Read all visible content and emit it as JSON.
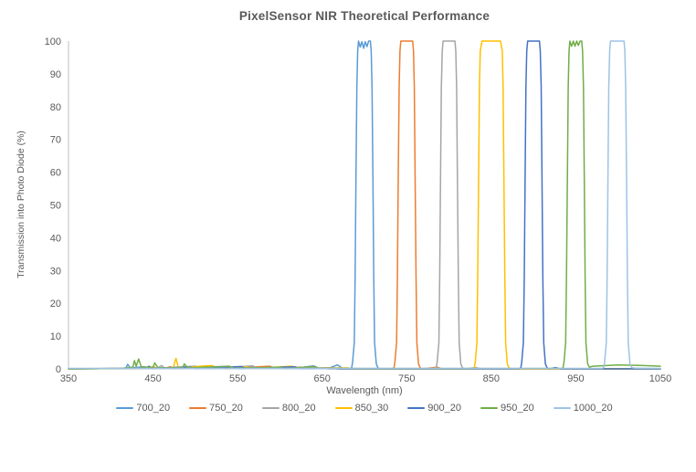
{
  "chart_data": {
    "type": "line",
    "title": "PixelSensor NIR Theoretical Performance",
    "xlabel": "Wavelength (nm)",
    "ylabel": "Transmission into Photo Diode (%)",
    "xlim": [
      350,
      1050
    ],
    "ylim": [
      0,
      100
    ],
    "x_ticks": [
      350,
      450,
      550,
      650,
      750,
      850,
      950,
      1050
    ],
    "y_ticks": [
      0,
      10,
      20,
      30,
      40,
      50,
      60,
      70,
      80,
      90,
      100
    ],
    "grid": false,
    "legend_position": "bottom",
    "axis_color": "#bfbfbf",
    "text_color": "#595959",
    "series": [
      {
        "name": "700_20",
        "color": "#5B9BD5",
        "center_nm": 700,
        "fwhm_nm": 20,
        "peak_pct": 100,
        "points": [
          [
            350,
            0
          ],
          [
            412,
            0.1
          ],
          [
            418,
            0.3
          ],
          [
            420,
            1.4
          ],
          [
            423,
            0.3
          ],
          [
            440,
            0.6
          ],
          [
            448,
            0.1
          ],
          [
            500,
            0.8
          ],
          [
            506,
            0.2
          ],
          [
            548,
            0.4
          ],
          [
            552,
            0.1
          ],
          [
            585,
            0.5
          ],
          [
            600,
            0.2
          ],
          [
            622,
            0.3
          ],
          [
            640,
            0.9
          ],
          [
            646,
            0.2
          ],
          [
            660,
            0.4
          ],
          [
            668,
            1.2
          ],
          [
            674,
            0.2
          ],
          [
            683,
            0
          ],
          [
            685,
            0.4
          ],
          [
            686,
            2
          ],
          [
            688,
            8
          ],
          [
            689,
            28
          ],
          [
            690,
            58
          ],
          [
            691,
            86
          ],
          [
            692,
            97
          ],
          [
            693,
            100
          ],
          [
            695,
            98.2
          ],
          [
            697,
            99.8
          ],
          [
            699,
            97.8
          ],
          [
            701,
            99.8
          ],
          [
            703,
            98.3
          ],
          [
            705,
            100
          ],
          [
            707,
            100
          ],
          [
            708,
            97
          ],
          [
            709,
            86
          ],
          [
            710,
            58
          ],
          [
            711,
            28
          ],
          [
            712,
            8
          ],
          [
            714,
            1.5
          ],
          [
            716,
            0.3
          ],
          [
            718,
            0
          ],
          [
            1050,
            0
          ]
        ]
      },
      {
        "name": "750_20",
        "color": "#ED7D31",
        "center_nm": 750,
        "fwhm_nm": 20,
        "peak_pct": 100,
        "points": [
          [
            350,
            0
          ],
          [
            466,
            0.2
          ],
          [
            470,
            0.7
          ],
          [
            474,
            0.1
          ],
          [
            530,
            0.5
          ],
          [
            536,
            0.1
          ],
          [
            588,
            0.8
          ],
          [
            594,
            0.2
          ],
          [
            625,
            0.5
          ],
          [
            632,
            0.1
          ],
          [
            662,
            0.3
          ],
          [
            668,
            0
          ],
          [
            733,
            0
          ],
          [
            735,
            0.4
          ],
          [
            736,
            2
          ],
          [
            738,
            8
          ],
          [
            739,
            28
          ],
          [
            740,
            58
          ],
          [
            741,
            86
          ],
          [
            742,
            97
          ],
          [
            743,
            100
          ],
          [
            757,
            100
          ],
          [
            758,
            97
          ],
          [
            759,
            86
          ],
          [
            760,
            58
          ],
          [
            761,
            28
          ],
          [
            762,
            8
          ],
          [
            764,
            1.5
          ],
          [
            766,
            0.3
          ],
          [
            768,
            0
          ],
          [
            786,
            0.5
          ],
          [
            792,
            0
          ],
          [
            1050,
            0
          ]
        ]
      },
      {
        "name": "800_20",
        "color": "#A5A5A5",
        "center_nm": 800,
        "fwhm_nm": 20,
        "peak_pct": 100,
        "points": [
          [
            350,
            0
          ],
          [
            456,
            0.3
          ],
          [
            460,
            1
          ],
          [
            464,
            0.2
          ],
          [
            510,
            0.6
          ],
          [
            516,
            0.1
          ],
          [
            568,
            0.9
          ],
          [
            574,
            0.2
          ],
          [
            610,
            0.4
          ],
          [
            616,
            0.1
          ],
          [
            652,
            0.3
          ],
          [
            658,
            0
          ],
          [
            783,
            0
          ],
          [
            785,
            0.4
          ],
          [
            786,
            2
          ],
          [
            788,
            8
          ],
          [
            789,
            28
          ],
          [
            790,
            58
          ],
          [
            791,
            86
          ],
          [
            792,
            97
          ],
          [
            793,
            100
          ],
          [
            807,
            100
          ],
          [
            808,
            97
          ],
          [
            809,
            86
          ],
          [
            810,
            58
          ],
          [
            811,
            28
          ],
          [
            812,
            8
          ],
          [
            814,
            1.5
          ],
          [
            816,
            0.3
          ],
          [
            818,
            0
          ],
          [
            832,
            0.4
          ],
          [
            838,
            0
          ],
          [
            1050,
            0
          ]
        ]
      },
      {
        "name": "850_30",
        "color": "#FFC000",
        "center_nm": 850,
        "fwhm_nm": 30,
        "peak_pct": 100,
        "points": [
          [
            350,
            0
          ],
          [
            446,
            0.2
          ],
          [
            450,
            0.8
          ],
          [
            454,
            0.2
          ],
          [
            474,
            0.4
          ],
          [
            477,
            3.2
          ],
          [
            480,
            0.4
          ],
          [
            520,
            1
          ],
          [
            526,
            0.2
          ],
          [
            560,
            0.6
          ],
          [
            566,
            0.1
          ],
          [
            614,
            0.8
          ],
          [
            620,
            0.2
          ],
          [
            680,
            0.3
          ],
          [
            686,
            0
          ],
          [
            827,
            0
          ],
          [
            830,
            0.4
          ],
          [
            831,
            2
          ],
          [
            833,
            8
          ],
          [
            834,
            28
          ],
          [
            835,
            58
          ],
          [
            836,
            86
          ],
          [
            837,
            97
          ],
          [
            839,
            100
          ],
          [
            861,
            100
          ],
          [
            863,
            97
          ],
          [
            864,
            86
          ],
          [
            865,
            58
          ],
          [
            866,
            28
          ],
          [
            867,
            8
          ],
          [
            869,
            1.5
          ],
          [
            871,
            0.3
          ],
          [
            874,
            0
          ],
          [
            1050,
            0
          ]
        ]
      },
      {
        "name": "900_20",
        "color": "#4472C4",
        "center_nm": 900,
        "fwhm_nm": 20,
        "peak_pct": 100,
        "points": [
          [
            350,
            0
          ],
          [
            442,
            0.2
          ],
          [
            445,
            0.8
          ],
          [
            449,
            0.2
          ],
          [
            495,
            0.5
          ],
          [
            501,
            0.1
          ],
          [
            554,
            0.7
          ],
          [
            560,
            0.2
          ],
          [
            618,
            0.6
          ],
          [
            624,
            0.1
          ],
          [
            664,
            0.2
          ],
          [
            670,
            0
          ],
          [
            883,
            0
          ],
          [
            885,
            0.4
          ],
          [
            886,
            2
          ],
          [
            888,
            8
          ],
          [
            889,
            28
          ],
          [
            890,
            58
          ],
          [
            891,
            86
          ],
          [
            892,
            97
          ],
          [
            893,
            100
          ],
          [
            907,
            100
          ],
          [
            908,
            97
          ],
          [
            909,
            86
          ],
          [
            910,
            58
          ],
          [
            911,
            28
          ],
          [
            912,
            8
          ],
          [
            914,
            1.5
          ],
          [
            916,
            0.3
          ],
          [
            918,
            0
          ],
          [
            926,
            0.4
          ],
          [
            932,
            0
          ],
          [
            1050,
            0
          ]
        ]
      },
      {
        "name": "950_20",
        "color": "#70AD47",
        "center_nm": 950,
        "fwhm_nm": 20,
        "peak_pct": 100,
        "points": [
          [
            350,
            0
          ],
          [
            414,
            0.1
          ],
          [
            418,
            0.3
          ],
          [
            426,
            0.5
          ],
          [
            428,
            2.5
          ],
          [
            430,
            0.8
          ],
          [
            433,
            3
          ],
          [
            436,
            0.6
          ],
          [
            450,
            0.4
          ],
          [
            452,
            1.8
          ],
          [
            456,
            0.3
          ],
          [
            485,
            0.3
          ],
          [
            487,
            1.5
          ],
          [
            491,
            0.3
          ],
          [
            540,
            0.8
          ],
          [
            546,
            0.2
          ],
          [
            598,
            0.5
          ],
          [
            606,
            0.1
          ],
          [
            640,
            0.7
          ],
          [
            646,
            0.2
          ],
          [
            700,
            0.1
          ],
          [
            933,
            0.1
          ],
          [
            935,
            0.4
          ],
          [
            936,
            2
          ],
          [
            938,
            8
          ],
          [
            939,
            28
          ],
          [
            940,
            58
          ],
          [
            941,
            86
          ],
          [
            942,
            97
          ],
          [
            943,
            100
          ],
          [
            945,
            98.4
          ],
          [
            947,
            100
          ],
          [
            949,
            98.4
          ],
          [
            951,
            100
          ],
          [
            953,
            98.7
          ],
          [
            955,
            100
          ],
          [
            957,
            100
          ],
          [
            958,
            97
          ],
          [
            959,
            86
          ],
          [
            960,
            58
          ],
          [
            961,
            28
          ],
          [
            962,
            8
          ],
          [
            964,
            1.5
          ],
          [
            966,
            0.5
          ],
          [
            970,
            0.8
          ],
          [
            1000,
            1.2
          ],
          [
            1030,
            1
          ],
          [
            1050,
            0.8
          ]
        ]
      },
      {
        "name": "1000_20",
        "color": "#9DC3E6",
        "center_nm": 1000,
        "fwhm_nm": 20,
        "peak_pct": 100,
        "points": [
          [
            350,
            0.15
          ],
          [
            600,
            0.15
          ],
          [
            760,
            0.15
          ],
          [
            900,
            0.15
          ],
          [
            981,
            0.15
          ],
          [
            983,
            0.4
          ],
          [
            984,
            2
          ],
          [
            986,
            8
          ],
          [
            987,
            28
          ],
          [
            988,
            58
          ],
          [
            989,
            86
          ],
          [
            990,
            97
          ],
          [
            991,
            100
          ],
          [
            1007,
            100
          ],
          [
            1008,
            97
          ],
          [
            1009,
            86
          ],
          [
            1010,
            58
          ],
          [
            1011,
            28
          ],
          [
            1012,
            8
          ],
          [
            1014,
            1.5
          ],
          [
            1016,
            0.4
          ],
          [
            1020,
            0.2
          ],
          [
            1050,
            0.15
          ]
        ]
      }
    ]
  }
}
